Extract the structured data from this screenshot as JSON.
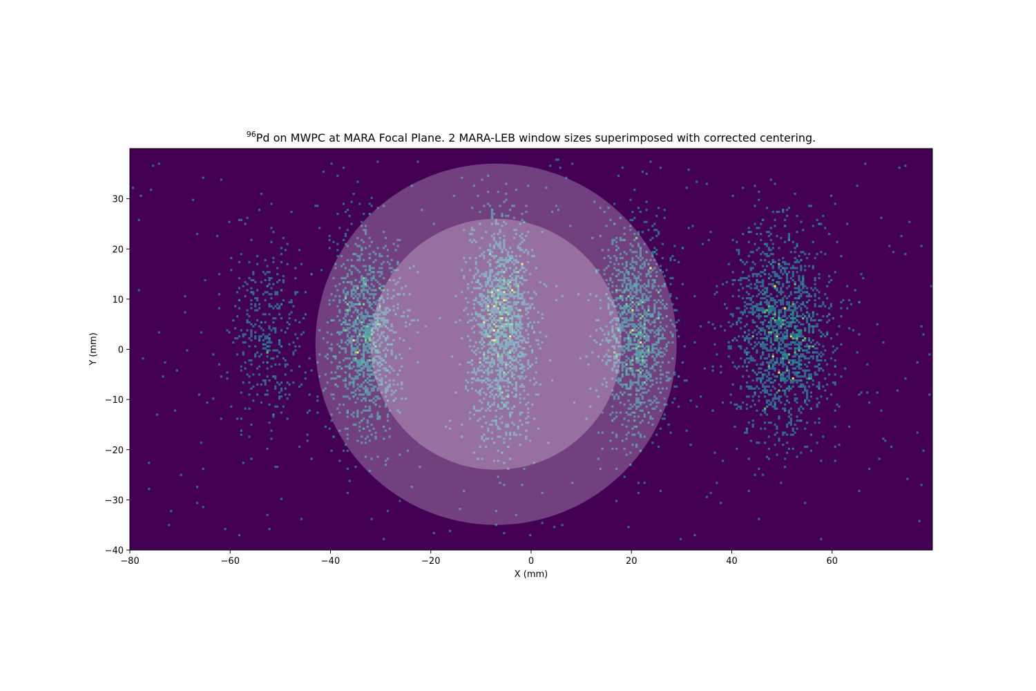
{
  "chart_data": {
    "type": "heatmap",
    "title": {
      "superscript": "96",
      "text": "Pd on MWPC at MARA Focal Plane. 2 MARA-LEB window sizes superimposed with corrected centering."
    },
    "xlabel": "X (mm)",
    "ylabel": "Y (mm)",
    "xlim": [
      -80,
      80
    ],
    "ylim": [
      -40,
      40
    ],
    "grid": false,
    "colormap": "viridis",
    "background_color": "#440154",
    "bin_size_mm": 0.4,
    "x_ticks": [
      {
        "value": -80,
        "label": "−80"
      },
      {
        "value": -60,
        "label": "−60"
      },
      {
        "value": -40,
        "label": "−40"
      },
      {
        "value": -20,
        "label": "−20"
      },
      {
        "value": 0,
        "label": "0"
      },
      {
        "value": 20,
        "label": "20"
      },
      {
        "value": 40,
        "label": "40"
      },
      {
        "value": 60,
        "label": "60"
      }
    ],
    "y_ticks": [
      {
        "value": -40,
        "label": "−40"
      },
      {
        "value": -30,
        "label": "−30"
      },
      {
        "value": -20,
        "label": "−20"
      },
      {
        "value": -10,
        "label": "−10"
      },
      {
        "value": 0,
        "label": "0"
      },
      {
        "value": 10,
        "label": "10"
      },
      {
        "value": 20,
        "label": "20"
      },
      {
        "value": 30,
        "label": "30"
      }
    ],
    "clusters": [
      {
        "center_x": -53,
        "center_y": 3,
        "sigma_x": 3.5,
        "sigma_y": 9,
        "counts": 350
      },
      {
        "center_x": -33,
        "center_y": 3,
        "sigma_x": 3.5,
        "sigma_y": 10,
        "counts": 1150
      },
      {
        "center_x": -6,
        "center_y": 5,
        "sigma_x": 3.2,
        "sigma_y": 11,
        "counts": 1500
      },
      {
        "center_x": 21,
        "center_y": 4,
        "sigma_x": 3.5,
        "sigma_y": 10,
        "counts": 1250
      },
      {
        "center_x": 50,
        "center_y": 3,
        "sigma_x": 5,
        "sigma_y": 10,
        "counts": 1600
      }
    ],
    "uniform_background_counts": 350,
    "overlays": [
      {
        "shape": "circle",
        "center_x": -7,
        "center_y": 1,
        "radius": 36,
        "color": "#ffffff",
        "alpha": 0.25
      },
      {
        "shape": "circle",
        "center_x": -7,
        "center_y": 1,
        "radius": 25,
        "color": "#ffffff",
        "alpha": 0.25
      }
    ]
  }
}
